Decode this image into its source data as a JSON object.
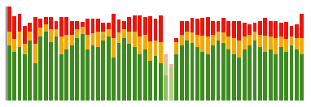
{
  "chart_data": {
    "type": "bar",
    "stacked": true,
    "grid": false,
    "tick_labels": false,
    "ylim": [
      0,
      106
    ],
    "categories": [
      null,
      null,
      null,
      null,
      null,
      null,
      null,
      null,
      null,
      null,
      null,
      null,
      null,
      null,
      null,
      null,
      null,
      null,
      null,
      null,
      null,
      null,
      null,
      null,
      null,
      null,
      null,
      null,
      null,
      null,
      null,
      null,
      null,
      null,
      null,
      null,
      null,
      null,
      null,
      null,
      null,
      null,
      null,
      null,
      null,
      null,
      null,
      null,
      null,
      null,
      null,
      null,
      null,
      null,
      null,
      null,
      null
    ],
    "series": [
      {
        "values": [
          62,
          55,
          60,
          52,
          68,
          42,
          72,
          78,
          66,
          72,
          52,
          58,
          62,
          70,
          75,
          58,
          62,
          60,
          68,
          72,
          48,
          65,
          70,
          64,
          60,
          52,
          58,
          45,
          50,
          42,
          28,
          22,
          52,
          62,
          68,
          65,
          60,
          55,
          52,
          62,
          68,
          65,
          58,
          52,
          48,
          58,
          62,
          68,
          60,
          55,
          58,
          52,
          60,
          55,
          62,
          58,
          52
        ],
        "colors": [
          "#3d8b20",
          "#3d8b20",
          "#3d8b20",
          "#3d8b20",
          "#3d8b20",
          "#3d8b20",
          "#3d8b20",
          "#3d8b20",
          "#3d8b20",
          "#3d8b20",
          "#3d8b20",
          "#3d8b20",
          "#3d8b20",
          "#3d8b20",
          "#3d8b20",
          "#3d8b20",
          "#3d8b20",
          "#3d8b20",
          "#3d8b20",
          "#3d8b20",
          "#3d8b20",
          "#3d8b20",
          "#3d8b20",
          "#3d8b20",
          "#3d8b20",
          "#3d8b20",
          "#3d8b20",
          "#3d8b20",
          "#3d8b20",
          "#3d8b20",
          "#90c060",
          "#b0d080",
          "#3d8b20",
          "#3d8b20",
          "#3d8b20",
          "#3d8b20",
          "#3d8b20",
          "#3d8b20",
          "#3d8b20",
          "#3d8b20",
          "#3d8b20",
          "#3d8b20",
          "#3d8b20",
          "#3d8b20",
          "#3d8b20",
          "#3d8b20",
          "#3d8b20",
          "#3d8b20",
          "#3d8b20",
          "#3d8b20",
          "#3d8b20",
          "#3d8b20",
          "#3d8b20",
          "#3d8b20",
          "#3d8b20",
          "#3d8b20",
          "#3d8b20"
        ]
      },
      {
        "values": [
          16,
          14,
          18,
          12,
          10,
          22,
          10,
          8,
          14,
          8,
          20,
          16,
          12,
          10,
          8,
          16,
          14,
          18,
          10,
          8,
          22,
          12,
          10,
          14,
          18,
          20,
          16,
          22,
          18,
          24,
          18,
          15,
          14,
          12,
          10,
          12,
          14,
          18,
          20,
          12,
          10,
          12,
          14,
          18,
          20,
          14,
          12,
          10,
          14,
          18,
          14,
          18,
          12,
          14,
          10,
          12,
          18
        ],
        "colors": [
          "#f5a800",
          "#f5a800",
          "#f5a800",
          "#f5a800",
          "#f5a800",
          "#f5a800",
          "#f5a800",
          "#f5a800",
          "#f5a800",
          "#f5a800",
          "#f5a800",
          "#f5a800",
          "#f5a800",
          "#f5a800",
          "#f5a800",
          "#f5a800",
          "#f5a800",
          "#f5a800",
          "#f5a800",
          "#f5a800",
          "#f5a800",
          "#f5a800",
          "#f5a800",
          "#f5a800",
          "#f5a800",
          "#f5a800",
          "#f5a800",
          "#f5a800",
          "#f5a800",
          "#f5a800",
          "#c8d090",
          "#c0c880",
          "#f5a800",
          "#f5a800",
          "#f5a800",
          "#f5a800",
          "#f5a800",
          "#f5a800",
          "#f5a800",
          "#f5a800",
          "#f5a800",
          "#f5a800",
          "#f5a800",
          "#f5a800",
          "#f5a800",
          "#f5a800",
          "#f5a800",
          "#f5a800",
          "#f5a800",
          "#f5a800",
          "#f5a800",
          "#f5a800",
          "#f5a800",
          "#f5a800",
          "#f5a800",
          "#f5a800",
          "#f5a800"
        ]
      },
      {
        "values": [
          28,
          26,
          20,
          20,
          10,
          30,
          10,
          8,
          14,
          10,
          22,
          20,
          16,
          10,
          6,
          18,
          16,
          14,
          10,
          8,
          28,
          14,
          10,
          16,
          18,
          24,
          20,
          28,
          24,
          30,
          6,
          4,
          4,
          16,
          12,
          16,
          18,
          20,
          22,
          16,
          12,
          16,
          18,
          20,
          22,
          16,
          12,
          10,
          16,
          20,
          18,
          20,
          16,
          20,
          12,
          16,
          28
        ],
        "colors": [
          "#e8160c",
          "#e8160c",
          "#e8160c",
          "#e8160c",
          "#e8160c",
          "#e8160c",
          "#e8160c",
          "#e8160c",
          "#e8160c",
          "#e8160c",
          "#e8160c",
          "#e8160c",
          "#e8160c",
          "#e8160c",
          "#e8160c",
          "#e8160c",
          "#e8160c",
          "#e8160c",
          "#e8160c",
          "#e8160c",
          "#e8160c",
          "#e8160c",
          "#e8160c",
          "#e8160c",
          "#e8160c",
          "#e8160c",
          "#e8160c",
          "#e8160c",
          "#e8160c",
          "#e8160c",
          "#f0b0b0",
          "#f0b0b0",
          "#e8160c",
          "#e8160c",
          "#e8160c",
          "#e8160c",
          "#e8160c",
          "#e8160c",
          "#e8160c",
          "#e8160c",
          "#e8160c",
          "#e8160c",
          "#e8160c",
          "#e8160c",
          "#e8160c",
          "#e8160c",
          "#e8160c",
          "#e8160c",
          "#e8160c",
          "#e8160c",
          "#e8160c",
          "#e8160c",
          "#e8160c",
          "#e8160c",
          "#e8160c",
          "#e8160c",
          "#e8160c"
        ]
      }
    ]
  }
}
